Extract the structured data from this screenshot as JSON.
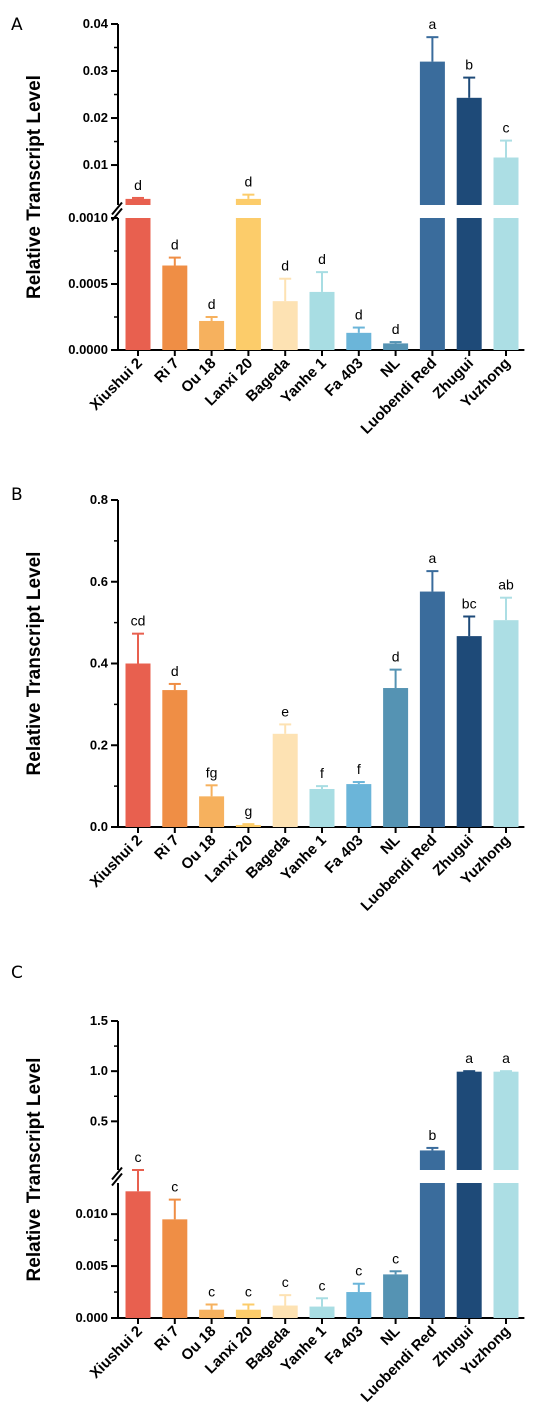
{
  "colors": [
    "#e8604f",
    "#ef8e45",
    "#f6b15e",
    "#fccc6a",
    "#fde2b3",
    "#a8dde3",
    "#6bb5d9",
    "#5593b3",
    "#3a6c9c",
    "#1e4a78",
    "#acdee4"
  ],
  "chart_data": [
    {
      "type": "bar",
      "panel_label": "A",
      "ylabel": "Relative Transcript Level",
      "categories": [
        "Xiushui 2",
        "Ri 7",
        "Ou 18",
        "Lanxi 20",
        "Bageda",
        "Yanhe 1",
        "Fa 403",
        "NL",
        "Luobendi Red",
        "Zhugui",
        "Yuzhong"
      ],
      "values": [
        0.0028,
        0.00064,
        0.00022,
        0.0028,
        0.00037,
        0.00044,
        0.00013,
        5e-05,
        0.032,
        0.0243,
        0.0116
      ],
      "errors": [
        0.0002,
        6e-05,
        3e-05,
        0.0009,
        0.00017,
        0.00015,
        4e-05,
        1e-05,
        0.0052,
        0.0043,
        0.0036
      ],
      "significance": [
        "d",
        "d",
        "d",
        "d",
        "d",
        "d",
        "d",
        "d",
        "a",
        "b",
        "c"
      ],
      "y_break": true,
      "lower_ylim": [
        0,
        0.001
      ],
      "lower_ticks": [
        "0.0000",
        "0.0005",
        "0.0010"
      ],
      "upper_ylim": [
        0.0015,
        0.04
      ],
      "upper_ticks": [
        "0.01",
        "0.02",
        "0.03",
        "0.04"
      ]
    },
    {
      "type": "bar",
      "panel_label": "B",
      "ylabel": "Relative Transcript Level",
      "categories": [
        "Xiushui 2",
        "Ri 7",
        "Ou 18",
        "Lanxi 20",
        "Bageda",
        "Yanhe 1",
        "Fa 403",
        "NL",
        "Luobendi Red",
        "Zhugui",
        "Yuzhong"
      ],
      "values": [
        0.4,
        0.335,
        0.075,
        0.005,
        0.228,
        0.093,
        0.105,
        0.34,
        0.576,
        0.467,
        0.506
      ],
      "errors": [
        0.073,
        0.015,
        0.027,
        0.002,
        0.023,
        0.007,
        0.005,
        0.045,
        0.05,
        0.048,
        0.055
      ],
      "significance": [
        "cd",
        "d",
        "fg",
        "g",
        "e",
        "f",
        "f",
        "d",
        "a",
        "bc",
        "ab"
      ],
      "y_break": false,
      "ylim": [
        0,
        0.8
      ],
      "ticks": [
        "0.0",
        "0.2",
        "0.4",
        "0.6",
        "0.8"
      ]
    },
    {
      "type": "bar",
      "panel_label": "C",
      "ylabel": "Relative Transcript Level",
      "categories": [
        "Xiushui 2",
        "Ri 7",
        "Ou 18",
        "Lanxi 20",
        "Bageda",
        "Yanhe 1",
        "Fa 403",
        "NL",
        "Luobendi Red",
        "Zhugui",
        "Yuzhong"
      ],
      "values": [
        0.0122,
        0.0095,
        0.0008,
        0.0008,
        0.0012,
        0.0011,
        0.0025,
        0.0042,
        0.21,
        0.995,
        0.995
      ],
      "errors": [
        0.0013,
        0.0019,
        0.0005,
        0.0005,
        0.001,
        0.0008,
        0.0008,
        0.0003,
        0.025,
        0.005,
        0.005
      ],
      "significance": [
        "c",
        "c",
        "c",
        "c",
        "c",
        "c",
        "c",
        "c",
        "b",
        "a",
        "a"
      ],
      "y_break": true,
      "lower_ylim": [
        0,
        0.013
      ],
      "lower_ticks": [
        "0.000",
        "0.005",
        "0.010"
      ],
      "upper_ylim": [
        0.015,
        1.5
      ],
      "upper_ticks": [
        "0.5",
        "1.0",
        "1.5"
      ]
    }
  ]
}
